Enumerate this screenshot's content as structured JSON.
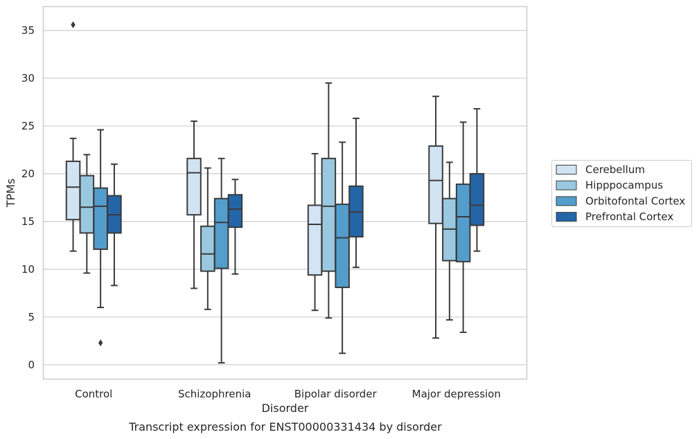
{
  "chart_data": {
    "type": "box",
    "caption": "Transcript expression for ENST00000331434 by disorder",
    "xlabel": "Disorder",
    "ylabel": "TPMs",
    "ylim": [
      -1.5,
      37.5
    ],
    "yticks": [
      0,
      5,
      10,
      15,
      20,
      25,
      30,
      35
    ],
    "ytick_labels": [
      "0",
      "5",
      "10",
      "15",
      "20",
      "25",
      "30",
      "35"
    ],
    "grid": "horizontal",
    "legend_position": "right",
    "categories": [
      "Control",
      "Schizophrenia",
      "Bipolar disorder",
      "Major depression"
    ],
    "series": [
      {
        "name": "Cerebellum",
        "color": "#d2e3f3",
        "boxes": [
          {
            "whislo": 11.9,
            "q1": 15.2,
            "med": 18.6,
            "q3": 21.3,
            "whishi": 23.7,
            "fliers": [
              35.6
            ]
          },
          {
            "whislo": 8.0,
            "q1": 15.7,
            "med": 20.1,
            "q3": 21.6,
            "whishi": 25.5,
            "fliers": []
          },
          {
            "whislo": 5.7,
            "q1": 9.4,
            "med": 14.7,
            "q3": 16.7,
            "whishi": 22.1,
            "fliers": []
          },
          {
            "whislo": 2.8,
            "q1": 14.8,
            "med": 19.3,
            "q3": 22.9,
            "whishi": 28.1,
            "fliers": []
          }
        ]
      },
      {
        "name": "Hipppocampus",
        "color": "#9ac8e0",
        "boxes": [
          {
            "whislo": 9.6,
            "q1": 13.8,
            "med": 16.5,
            "q3": 19.8,
            "whishi": 22.0,
            "fliers": []
          },
          {
            "whislo": 5.8,
            "q1": 9.8,
            "med": 11.6,
            "q3": 14.5,
            "whishi": 20.6,
            "fliers": []
          },
          {
            "whislo": 4.9,
            "q1": 9.8,
            "med": 16.6,
            "q3": 21.6,
            "whishi": 29.5,
            "fliers": []
          },
          {
            "whislo": 4.7,
            "q1": 10.9,
            "med": 14.2,
            "q3": 17.4,
            "whishi": 21.2,
            "fliers": []
          }
        ]
      },
      {
        "name": "Orbitofontal Cortex",
        "color": "#529dcc",
        "boxes": [
          {
            "whislo": 6.0,
            "q1": 12.1,
            "med": 16.6,
            "q3": 18.5,
            "whishi": 24.6,
            "fliers": [
              2.3
            ]
          },
          {
            "whislo": 0.2,
            "q1": 10.1,
            "med": 14.9,
            "q3": 17.4,
            "whishi": 21.6,
            "fliers": []
          },
          {
            "whislo": 1.2,
            "q1": 8.1,
            "med": 13.3,
            "q3": 16.8,
            "whishi": 23.3,
            "fliers": []
          },
          {
            "whislo": 3.4,
            "q1": 10.8,
            "med": 15.5,
            "q3": 18.9,
            "whishi": 25.4,
            "fliers": []
          }
        ]
      },
      {
        "name": "Prefrontal Cortex",
        "color": "#2465a8",
        "boxes": [
          {
            "whislo": 8.3,
            "q1": 13.8,
            "med": 15.7,
            "q3": 17.7,
            "whishi": 21.0,
            "fliers": []
          },
          {
            "whislo": 9.5,
            "q1": 14.4,
            "med": 16.3,
            "q3": 17.8,
            "whishi": 19.4,
            "fliers": []
          },
          {
            "whislo": 10.2,
            "q1": 13.4,
            "med": 16.0,
            "q3": 18.7,
            "whishi": 25.8,
            "fliers": []
          },
          {
            "whislo": 11.9,
            "q1": 14.6,
            "med": 16.7,
            "q3": 20.0,
            "whishi": 26.8,
            "fliers": []
          }
        ]
      }
    ]
  }
}
